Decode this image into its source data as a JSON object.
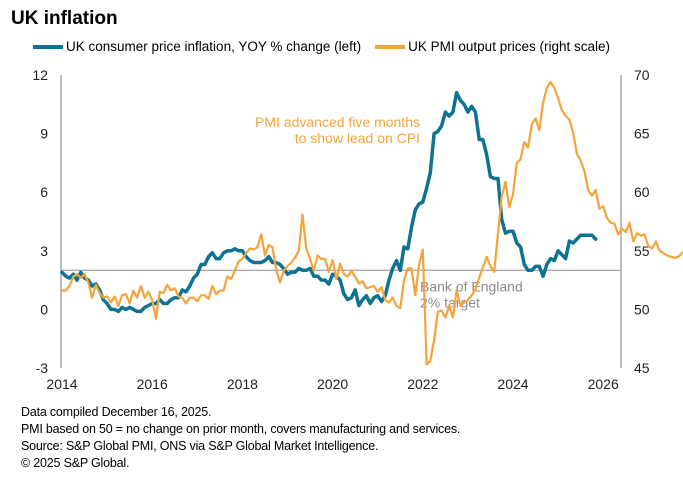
{
  "title": "UK inflation",
  "legend": [
    {
      "label": "UK consumer price inflation, YOY % change (left)",
      "color": "#0e7392"
    },
    {
      "label": "UK PMI output prices (right scale)",
      "color": "#f5a33a"
    }
  ],
  "footer": [
    "Data compiled December 16, 2025.",
    "PMI based on 50 = no change on prior month, covers manufacturing and services.",
    "Source: S&P Global PMI,  ONS via S&P Global Market Intelligence.",
    "© 2025 S&P Global."
  ],
  "chart_data": {
    "type": "line",
    "title": "UK inflation",
    "xlabel": "",
    "ylabel_left": "UK consumer price inflation, YOY % change",
    "ylabel_right": "UK PMI output prices",
    "x_ticks": [
      "2014",
      "2016",
      "2018",
      "2020",
      "2022",
      "2024",
      "2026"
    ],
    "xlim": [
      2014,
      2026.75
    ],
    "y_left": {
      "ticks": [
        "12",
        "9",
        "6",
        "3",
        "0",
        "-3"
      ],
      "lim": [
        -3,
        12
      ]
    },
    "y_right": {
      "ticks": [
        "70",
        "65",
        "60",
        "55",
        "50",
        "45"
      ],
      "lim": [
        45,
        70
      ]
    },
    "reference_line": {
      "axis": "left",
      "value": 2,
      "label_lines": [
        "Bank of England",
        "2% target"
      ],
      "color": "#9a9a9a"
    },
    "annotation": {
      "lines": [
        "PMI advanced five months",
        "to show lead on CPI"
      ],
      "color": "#f5a33a"
    },
    "series": [
      {
        "name": "UK consumer price inflation, YOY % change (left)",
        "axis": "left",
        "color": "#0e7392",
        "x_start": 2014.0,
        "step_months": 1,
        "values": [
          1.9,
          1.7,
          1.6,
          1.8,
          1.5,
          1.9,
          1.6,
          1.5,
          1.2,
          1.3,
          1.0,
          0.5,
          0.3,
          0.0,
          0.0,
          -0.1,
          0.1,
          0.0,
          0.1,
          0.0,
          -0.1,
          -0.1,
          0.1,
          0.2,
          0.3,
          0.3,
          0.5,
          0.3,
          0.3,
          0.5,
          0.6,
          0.6,
          1.0,
          0.9,
          1.2,
          1.6,
          1.8,
          2.3,
          2.3,
          2.7,
          2.9,
          2.6,
          2.6,
          2.9,
          3.0,
          3.0,
          3.1,
          3.0,
          3.0,
          2.7,
          2.5,
          2.4,
          2.4,
          2.4,
          2.5,
          2.7,
          2.4,
          2.4,
          2.3,
          2.1,
          1.8,
          1.9,
          1.9,
          2.1,
          2.0,
          2.0,
          2.1,
          1.7,
          1.7,
          1.5,
          1.5,
          1.3,
          1.8,
          1.7,
          1.5,
          0.8,
          0.5,
          0.6,
          1.0,
          0.2,
          0.5,
          0.7,
          0.3,
          0.6,
          0.7,
          0.4,
          0.7,
          1.5,
          2.1,
          2.5,
          2.0,
          3.2,
          3.1,
          4.2,
          5.1,
          5.4,
          5.5,
          6.2,
          7.0,
          9.0,
          9.1,
          9.4,
          10.1,
          9.9,
          10.1,
          11.1,
          10.7,
          10.5,
          10.1,
          10.4,
          10.1,
          8.7,
          8.7,
          7.9,
          6.8,
          6.7,
          6.7,
          4.6,
          3.9,
          4.0,
          4.0,
          3.4,
          3.2,
          2.3,
          2.0,
          2.0,
          2.2,
          2.2,
          1.7,
          2.3,
          2.6,
          2.5,
          3.0,
          2.8,
          2.6,
          3.5,
          3.4,
          3.6,
          3.8,
          3.8,
          3.8,
          3.8,
          3.6
        ]
      },
      {
        "name": "UK PMI output prices (right scale)",
        "axis": "right",
        "color": "#f5a33a",
        "x_start": 2014.0,
        "step_months": 1,
        "values": [
          51.6,
          51.6,
          52.0,
          52.8,
          53.0,
          52.7,
          53.0,
          52.3,
          51.0,
          52.1,
          51.4,
          51.0,
          51.1,
          50.6,
          51.1,
          50.3,
          51.2,
          51.3,
          50.5,
          51.6,
          51.0,
          52.0,
          51.0,
          51.5,
          50.8,
          49.2,
          51.5,
          51.4,
          52.1,
          51.6,
          51.8,
          51.1,
          51.0,
          50.5,
          51.0,
          51.0,
          50.7,
          51.2,
          51.2,
          50.9,
          52.0,
          51.3,
          51.6,
          51.6,
          52.8,
          52.6,
          53.3,
          54.1,
          54.3,
          54.8,
          55.2,
          55.1,
          55.3,
          56.4,
          54.6,
          55.5,
          55.3,
          53.4,
          52.3,
          53.3,
          53.7,
          54.0,
          54.4,
          55.0,
          58.1,
          55.2,
          54.3,
          53.3,
          54.6,
          54.3,
          54.3,
          53.2,
          54.2,
          52.6,
          53.9,
          53.0,
          52.8,
          53.3,
          52.8,
          52.2,
          52.4,
          51.8,
          51.9,
          52.0,
          51.5,
          51.9,
          50.8,
          50.6,
          51.0,
          50.3,
          50.1,
          52.5,
          53.5,
          53.5,
          51.2,
          53.8,
          55.1,
          45.3,
          45.6,
          47.4,
          49.8,
          49.9,
          49.3,
          50.3,
          49.3,
          51.6,
          50.3,
          50.6,
          50.8,
          51.2,
          51.7,
          52.7,
          53.6,
          54.5,
          53.7,
          53.2,
          56.5,
          59.6,
          60.9,
          58.7,
          59.8,
          62.5,
          62.8,
          64.3,
          63.8,
          65.8,
          66.3,
          65.3,
          67.6,
          68.9,
          69.4,
          68.9,
          68.0,
          67.0,
          66.5,
          66.2,
          65.1,
          63.3,
          62.7,
          61.8,
          60.2,
          59.7,
          60.2,
          58.6,
          58.8,
          57.8,
          57.4,
          57.3,
          56.4,
          56.9,
          56.6,
          57.4,
          55.8,
          56.5,
          56.3,
          56.4,
          55.4,
          55.2,
          55.8,
          55.0,
          54.8,
          54.6,
          54.5,
          54.4,
          54.5,
          54.8,
          55.1,
          55.6,
          57.2,
          57.1,
          56.7,
          58.6,
          55.8,
          53.4,
          54.4,
          55.1,
          54.3,
          54.0,
          51.1,
          54.5
        ]
      }
    ]
  }
}
